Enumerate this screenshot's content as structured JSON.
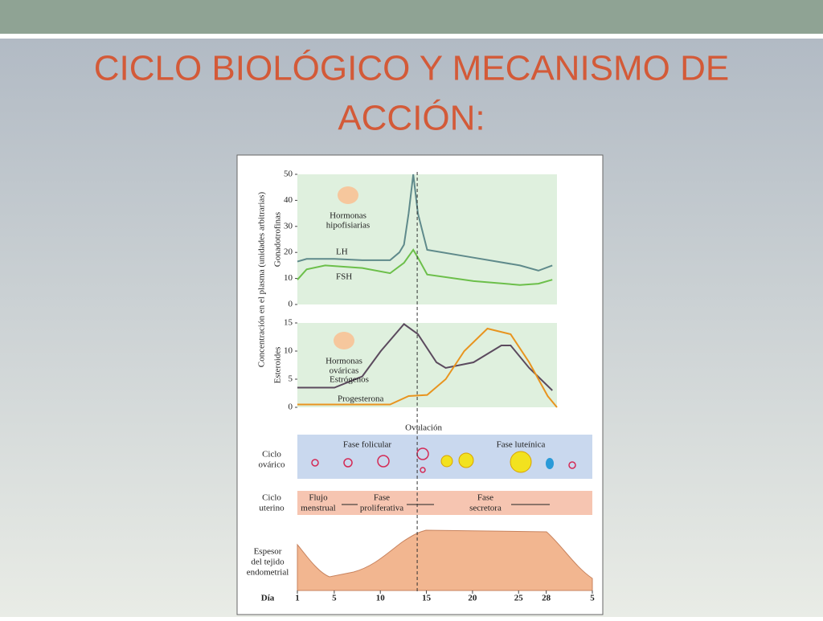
{
  "slide": {
    "title_lines": [
      "CICLO BIOLÓGICO Y MECANISMO DE",
      "ACCIÓN:"
    ]
  },
  "y_axis_label": "Concentración en el plasma (unidades arbitrarias)",
  "chart_data": [
    {
      "type": "line",
      "ylabel": "Gonadotrofinas",
      "annotation_lines": [
        "Hormonas",
        "hipofisiarias"
      ],
      "xlim": [
        1,
        29
      ],
      "ylim": [
        0,
        50
      ],
      "yticks": [
        0,
        10,
        20,
        30,
        40,
        50
      ],
      "series": [
        {
          "name": "LH",
          "color": "#5f8a8b",
          "x": [
            1,
            2,
            5,
            8,
            11,
            12,
            12.5,
            13,
            13.5,
            14,
            15,
            20,
            25,
            27,
            28.5
          ],
          "values": [
            16.5,
            17.5,
            17.5,
            17,
            17,
            20,
            23,
            35,
            50,
            35,
            21,
            18,
            15,
            13,
            15
          ]
        },
        {
          "name": "FSH",
          "color": "#6cbf4a",
          "x": [
            1,
            2,
            4,
            8,
            11,
            12.5,
            13.5,
            14,
            15,
            20,
            25,
            27,
            28.5
          ],
          "values": [
            9.5,
            13.5,
            15,
            14,
            12,
            16,
            21,
            18,
            11.5,
            9,
            7.5,
            8,
            9.5
          ]
        }
      ]
    },
    {
      "type": "line",
      "ylabel": "Esteroides",
      "annotation_lines": [
        "Hormonas",
        "ováricas"
      ],
      "xlim": [
        1,
        29
      ],
      "ylim": [
        0,
        15
      ],
      "yticks": [
        0,
        5,
        10,
        15
      ],
      "series": [
        {
          "name": "Estrógenos",
          "color": "#5b4a5e",
          "x": [
            1,
            5,
            8,
            10,
            12.5,
            14,
            16,
            17,
            20,
            23,
            24,
            26,
            28.5
          ],
          "values": [
            3.5,
            3.5,
            5.5,
            10,
            14.8,
            13,
            8,
            7,
            8,
            11,
            11,
            7,
            3
          ]
        },
        {
          "name": "Progesterona",
          "color": "#e8941f",
          "x": [
            1,
            11,
            13,
            15,
            17,
            19,
            21.5,
            24,
            26,
            28,
            29
          ],
          "values": [
            0.5,
            0.5,
            2,
            2.2,
            5,
            10,
            14,
            13,
            8,
            2,
            0
          ]
        }
      ]
    }
  ],
  "ovulation": {
    "label": "Ovulación",
    "day": 14
  },
  "ovarian_cycle": {
    "label_lines": [
      "Ciclo",
      "ovárico"
    ],
    "phases": [
      "Fase folicular",
      "Fase luteínica"
    ]
  },
  "uterine_cycle": {
    "label_lines": [
      "Ciclo",
      "uterino"
    ],
    "phases": [
      [
        "Flujo",
        "menstrual"
      ],
      [
        "Fase",
        "proliferativa"
      ],
      [
        "Fase",
        "secretora"
      ]
    ]
  },
  "endometrium": {
    "label_lines": [
      "Espesor",
      "del tejido",
      "endometrial"
    ]
  },
  "day_axis": {
    "label": "Día",
    "xlim": [
      1,
      33
    ],
    "xticks": [
      1,
      5,
      10,
      15,
      20,
      25,
      28,
      {
        "value": 33,
        "label": "5"
      }
    ]
  }
}
